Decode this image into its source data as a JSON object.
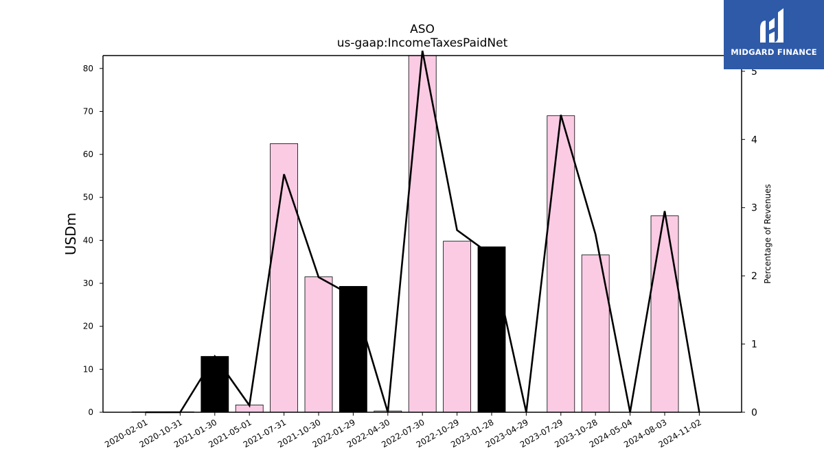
{
  "chart_data": {
    "type": "bar",
    "title": "ASO",
    "subtitle": "us-gaap:IncomeTaxesPaidNet",
    "ylabel": "USDm",
    "y2label": "Percentage of Revenues",
    "ylim": [
      0,
      83
    ],
    "y2lim": [
      0,
      5.23
    ],
    "yticks": [
      0,
      10,
      20,
      30,
      40,
      50,
      60,
      70,
      80
    ],
    "y2ticks": [
      0,
      1,
      2,
      3,
      4,
      5
    ],
    "grid": false,
    "categories": [
      "2020-02-01",
      "2020-10-31",
      "2021-01-30",
      "2021-05-01",
      "2021-07-31",
      "2021-10-30",
      "2022-01-29",
      "2022-04-30",
      "2022-07-30",
      "2022-10-29",
      "2023-01-28",
      "2023-04-29",
      "2023-07-29",
      "2023-10-28",
      "2024-05-04",
      "2024-08-03",
      "2024-11-02"
    ],
    "series": [
      {
        "kind": "bar",
        "axis": "left",
        "values": [
          0.1,
          0.1,
          13.0,
          1.7,
          62.5,
          31.5,
          29.3,
          0.3,
          83.0,
          39.8,
          38.5,
          0,
          69.0,
          36.6,
          0,
          45.7,
          0
        ],
        "colors": [
          "#fbcbe4",
          "#fbcbe4",
          "#000000",
          "#fbcbe4",
          "#fbcbe4",
          "#fbcbe4",
          "#000000",
          "#fbcbe4",
          "#fbcbe4",
          "#fbcbe4",
          "#000000",
          "#fbcbe4",
          "#fbcbe4",
          "#fbcbe4",
          "#fbcbe4",
          "#fbcbe4",
          "#fbcbe4"
        ]
      },
      {
        "kind": "line",
        "axis": "right",
        "color": "#000000",
        "values": [
          0.0,
          0.0,
          0.82,
          0.1,
          3.49,
          1.98,
          1.7,
          0.0,
          5.3,
          2.67,
          2.3,
          0.0,
          4.36,
          2.61,
          0.0,
          2.95,
          0.0
        ]
      }
    ]
  },
  "logo": {
    "text": "MIDGARD FINANCE",
    "background": "#2e5aa8"
  }
}
